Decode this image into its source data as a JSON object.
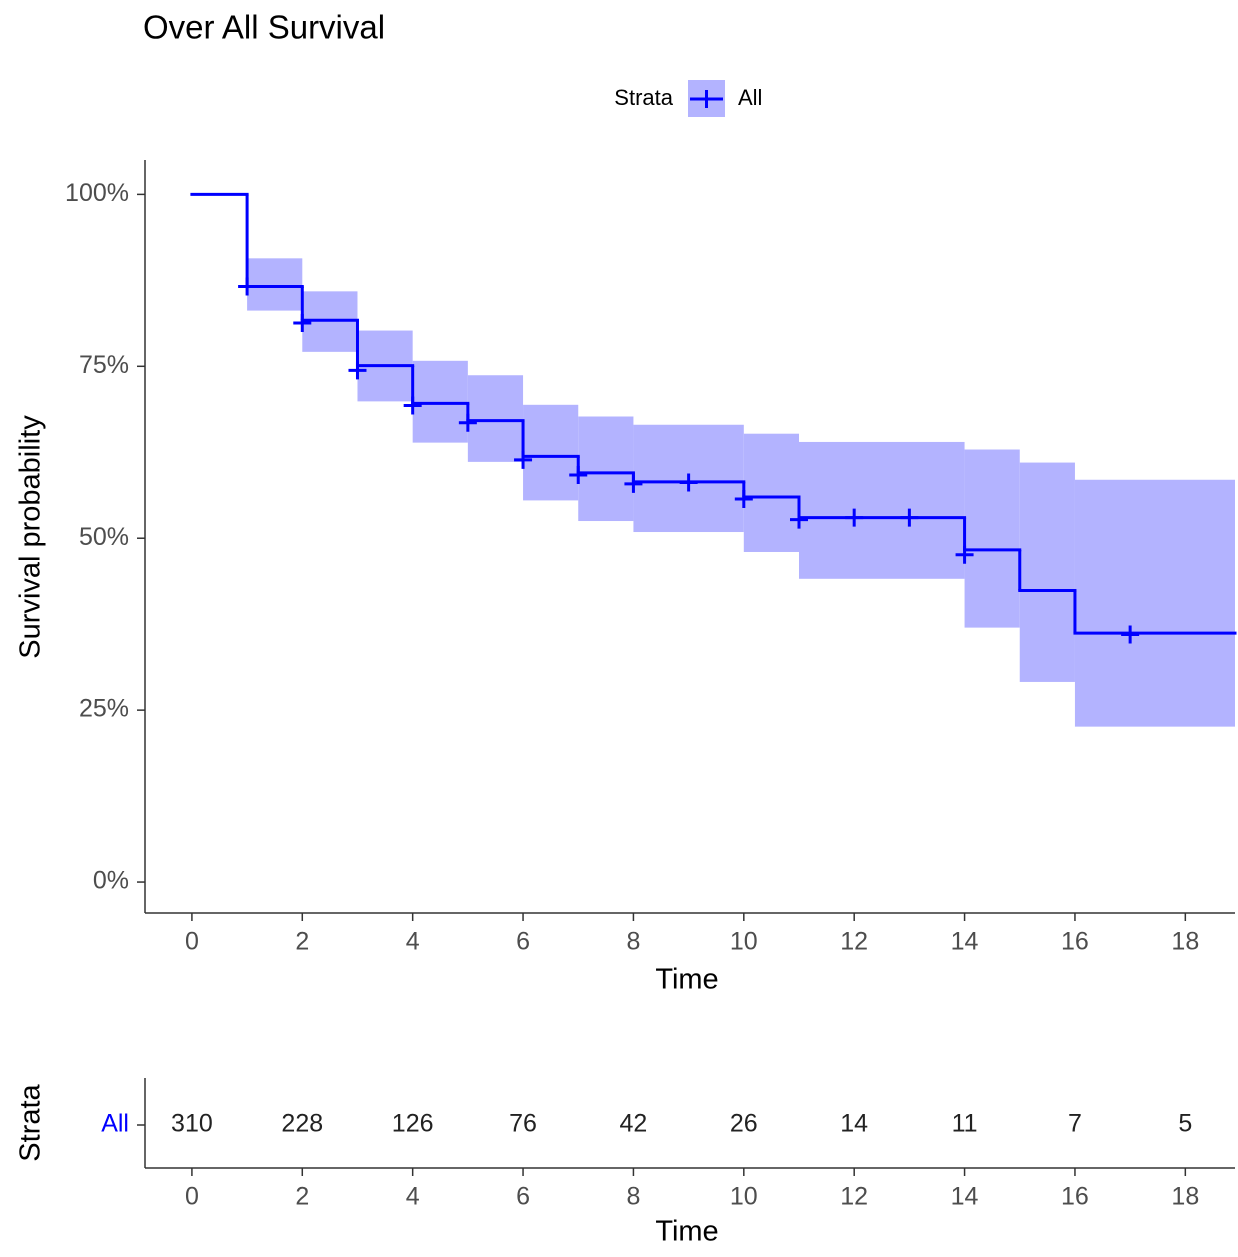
{
  "chart_data": [
    {
      "type": "step",
      "title": "Over All Survival",
      "legend_title": "Strata",
      "xlabel": "Time",
      "ylabel": "Survival probability",
      "series": [
        {
          "name": "All",
          "color": "#0000ff",
          "band_color": "#b3b3ff",
          "x": [
            0,
            1,
            2,
            3,
            4,
            5,
            6,
            7,
            8,
            10,
            11,
            14,
            15,
            16
          ],
          "values": [
            100,
            86.6,
            81.7,
            75.1,
            69.6,
            67.1,
            61.9,
            59.5,
            58.2,
            56.0,
            53.0,
            48.3,
            42.4,
            36.2
          ],
          "upper": [
            null,
            90.7,
            85.9,
            80.2,
            75.8,
            73.7,
            69.4,
            67.7,
            66.5,
            65.2,
            64.0,
            62.9,
            61.0,
            58.5
          ],
          "lower": [
            null,
            83.1,
            77.1,
            69.9,
            63.9,
            61.1,
            55.5,
            52.5,
            50.9,
            48.0,
            44.1,
            37.0,
            29.1,
            22.6
          ],
          "censor_x": [
            1,
            2,
            3,
            4,
            5,
            6,
            7,
            8,
            9,
            10,
            11,
            12,
            13,
            14,
            17
          ],
          "censor_values": [
            86.6,
            81.3,
            74.4,
            69.3,
            66.8,
            61.4,
            59.2,
            57.9,
            58.1,
            55.7,
            52.7,
            53.0,
            53.0,
            47.6,
            36.0
          ]
        }
      ],
      "xlim": [
        -0.85,
        18.9
      ],
      "xticks": [
        0,
        2,
        4,
        6,
        8,
        10,
        12,
        14,
        16,
        18
      ],
      "ylim": [
        -4.5,
        105
      ],
      "yticks": [
        {
          "value": 0,
          "label": "0%"
        },
        {
          "value": 25,
          "label": "25%"
        },
        {
          "value": 50,
          "label": "50%"
        },
        {
          "value": 75,
          "label": "75%"
        },
        {
          "value": 100,
          "label": "100%"
        }
      ]
    },
    {
      "type": "table",
      "xlabel": "Time",
      "ylabel": "Strata",
      "row": "All",
      "row_color": "#0000ff",
      "x": [
        0,
        2,
        4,
        6,
        8,
        10,
        12,
        14,
        16,
        18
      ],
      "values": [
        310,
        228,
        126,
        76,
        42,
        26,
        14,
        11,
        7,
        5
      ],
      "xlim": [
        -0.85,
        18.9
      ],
      "xticks": [
        0,
        2,
        4,
        6,
        8,
        10,
        12,
        14,
        16,
        18
      ]
    }
  ]
}
